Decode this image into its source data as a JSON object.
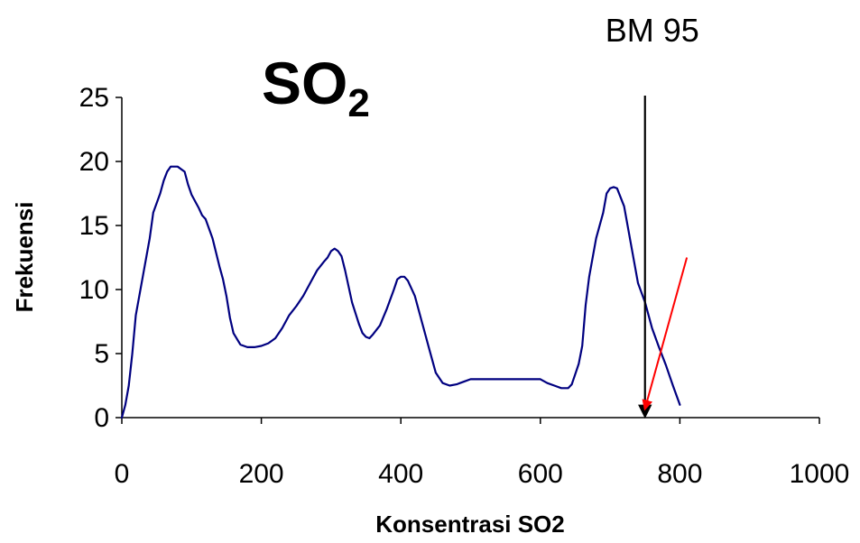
{
  "chart_data": {
    "type": "line",
    "title": {
      "main": "SO",
      "subscript": "2"
    },
    "xlabel": "Konsentrasi SO2",
    "ylabel": "Frekuensi",
    "xlim": [
      0,
      1000
    ],
    "ylim": [
      0,
      25
    ],
    "xticks": [
      0,
      200,
      400,
      600,
      800,
      1000
    ],
    "yticks": [
      0,
      5,
      10,
      15,
      20,
      25
    ],
    "grid": false,
    "series": [
      {
        "color": "#000080",
        "x": [
          0,
          5,
          10,
          15,
          20,
          30,
          40,
          45,
          55,
          60,
          65,
          70,
          80,
          90,
          95,
          100,
          110,
          115,
          120,
          130,
          140,
          145,
          150,
          155,
          160,
          170,
          180,
          190,
          200,
          210,
          220,
          230,
          240,
          250,
          260,
          270,
          280,
          290,
          295,
          300,
          305,
          310,
          315,
          320,
          330,
          340,
          345,
          350,
          355,
          360,
          370,
          380,
          390,
          395,
          400,
          405,
          410,
          420,
          430,
          440,
          450,
          460,
          470,
          480,
          490,
          500,
          510,
          520,
          530,
          540,
          550,
          560,
          570,
          580,
          590,
          600,
          610,
          620,
          630,
          640,
          645,
          650,
          655,
          660,
          665,
          670,
          680,
          690,
          695,
          700,
          705,
          710,
          720,
          730,
          740,
          750,
          760,
          770,
          780,
          790,
          800
        ],
        "y": [
          0,
          1,
          2.5,
          5,
          8,
          11,
          14,
          16,
          17.5,
          18.5,
          19.2,
          19.6,
          19.6,
          19.2,
          18.2,
          17.4,
          16.4,
          15.8,
          15.5,
          14,
          11.8,
          10.8,
          9.5,
          7.8,
          6.6,
          5.7,
          5.5,
          5.5,
          5.6,
          5.8,
          6.2,
          7,
          8,
          8.7,
          9.5,
          10.5,
          11.5,
          12.2,
          12.5,
          13,
          13.2,
          13,
          12.6,
          11.5,
          9,
          7.3,
          6.6,
          6.3,
          6.2,
          6.5,
          7.2,
          8.5,
          10,
          10.8,
          11,
          11,
          10.7,
          9.5,
          7.5,
          5.5,
          3.5,
          2.7,
          2.5,
          2.6,
          2.8,
          3,
          3,
          3,
          3,
          3,
          3,
          3,
          3,
          3,
          3,
          3,
          2.7,
          2.5,
          2.3,
          2.3,
          2.6,
          3.4,
          4.2,
          5.6,
          8.8,
          11,
          14,
          16,
          17.5,
          17.9,
          18,
          17.9,
          16.5,
          13.5,
          10.5,
          9,
          7,
          5.5,
          4.1,
          2.5,
          1
        ]
      }
    ],
    "annotations": [
      {
        "label": "BM 95",
        "x": 750,
        "kind": "vertical-arrow",
        "color": "#000000"
      },
      {
        "kind": "arrow",
        "color": "#ff0000",
        "from": [
          810,
          12.5
        ],
        "to": [
          750,
          0.7
        ]
      }
    ]
  }
}
